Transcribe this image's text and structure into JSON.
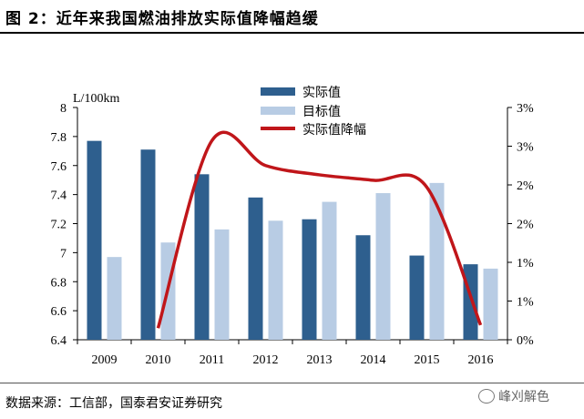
{
  "figure": {
    "title": "图 2：近年来我国燃油排放实际值降幅趋缓",
    "source": "数据来源：工信部，国泰君安证券研究",
    "watermark": "峰刈解色"
  },
  "colors": {
    "actual": "#2e5f8e",
    "target": "#b8cce4",
    "decline": "#c0161a"
  },
  "chart_data": {
    "type": "bar",
    "categories": [
      "2009",
      "2010",
      "2011",
      "2012",
      "2013",
      "2014",
      "2015",
      "2016"
    ],
    "series": [
      {
        "name": "实际值",
        "type": "bar",
        "axis": "left",
        "values": [
          7.77,
          7.71,
          7.54,
          7.38,
          7.23,
          7.12,
          6.98,
          6.92
        ]
      },
      {
        "name": "目标值",
        "type": "bar",
        "axis": "left",
        "values": [
          6.97,
          7.07,
          7.16,
          7.22,
          7.35,
          7.41,
          7.48,
          6.89
        ]
      },
      {
        "name": "实际值降幅",
        "type": "line",
        "axis": "right",
        "x": [
          "2010",
          "2011",
          "2012",
          "2013",
          "2014",
          "2015",
          "2016"
        ],
        "values": [
          0.0015,
          0.0257,
          0.0225,
          0.0213,
          0.0206,
          0.0197,
          0.0019
        ]
      }
    ],
    "y_left": {
      "label": "L/100km",
      "range": [
        6.4,
        8
      ],
      "ticks": [
        "6.4",
        "6.6",
        "6.8",
        "7",
        "7.2",
        "7.4",
        "7.6",
        "7.8",
        "8"
      ]
    },
    "y_right": {
      "range": [
        0,
        0.03
      ],
      "ticks": [
        "0%",
        "1%",
        "1%",
        "2%",
        "2%",
        "3%",
        "3%"
      ]
    },
    "legend_position": "top-center",
    "grid": false
  }
}
